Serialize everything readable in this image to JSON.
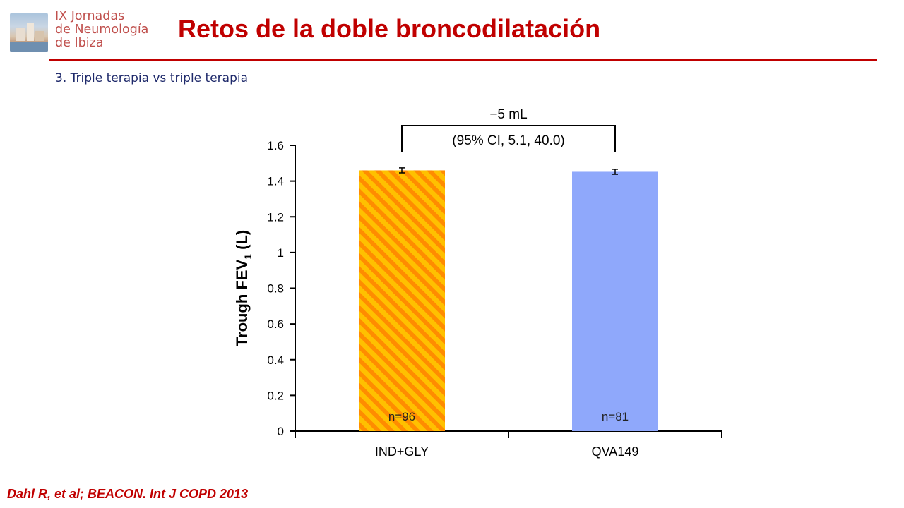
{
  "header": {
    "logo_lines": [
      "IX Jornadas",
      "de Neumología",
      "de Ibiza"
    ],
    "title": "Retos de la doble broncodilatación",
    "subtitle": "3. Triple terapia vs triple terapia"
  },
  "footer": {
    "citation": "Dahl R, et al; BEACON. Int J COPD 2013"
  },
  "colors": {
    "title": "#c00000",
    "logo_text": "#c0504d",
    "subtitle": "#1f2a6b",
    "bar_ind_gly_stripe_a": "#ffc000",
    "bar_ind_gly_stripe_b": "#ff8c00",
    "bar_qva149": "#8fa8fb"
  },
  "chart_data": {
    "type": "bar",
    "ylabel_main": "Trough FEV",
    "ylabel_sub": "1",
    "ylabel_unit": " (L)",
    "ylim": [
      0,
      1.6
    ],
    "yticks": [
      "0",
      "0.2",
      "0.4",
      "0.6",
      "0.8",
      "1",
      "1.2",
      "1.4",
      "1.6"
    ],
    "ytick_values": [
      0,
      0.2,
      0.4,
      0.6,
      0.8,
      1.0,
      1.2,
      1.4,
      1.6
    ],
    "categories": [
      "IND+GLY",
      "QVA149"
    ],
    "values": [
      1.46,
      1.452
    ],
    "error": [
      0.014,
      0.014
    ],
    "sample_labels": [
      "n=96",
      "n=81"
    ],
    "bar_styles": [
      "striped",
      "solid"
    ],
    "comparison": {
      "difference_label": "−5 mL",
      "ci_label": "(95% CI, 5.1, 40.0)"
    },
    "grid": false
  }
}
